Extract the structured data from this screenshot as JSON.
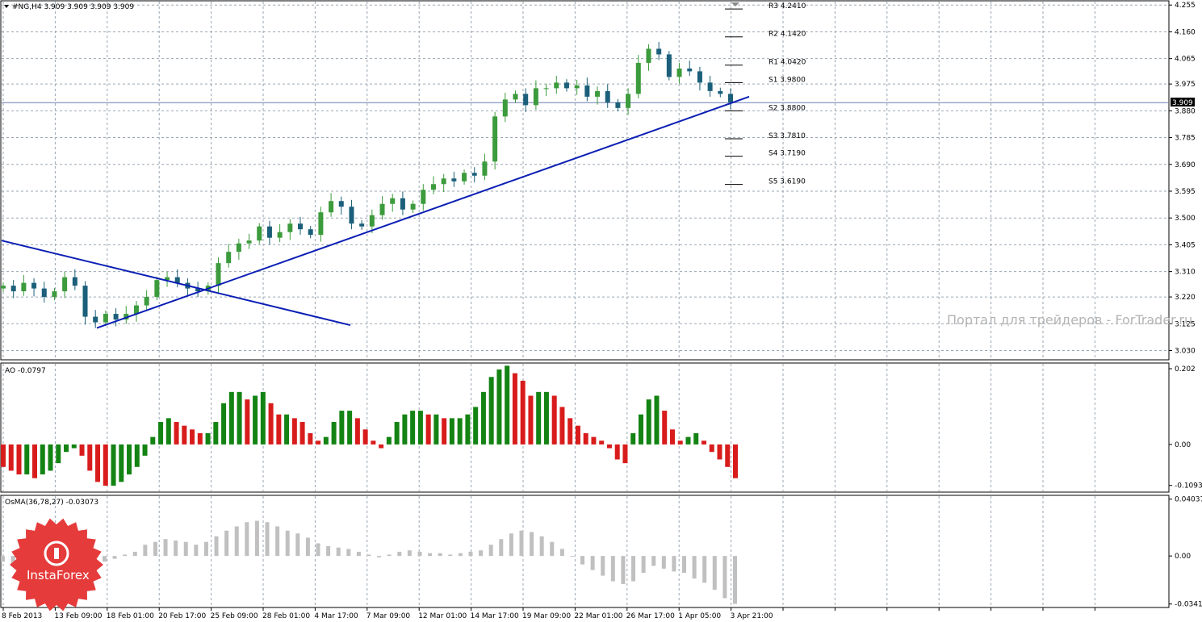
{
  "colors": {
    "background": "#ffffff",
    "grid": "#9aa6b2",
    "frame": "#000000",
    "bull_candle": "#3c9b3c",
    "bear_candle": "#1b5f7a",
    "trendline": "#0b1fb4",
    "ao_up": "#138313",
    "ao_down": "#d81c1c",
    "osma": "#c0c0c0",
    "watermark": "#b4b4b4",
    "logo_red": "#e53b3b"
  },
  "icons": {
    "title_marker": "down-triangle-icon",
    "logo": "instaforex-logo-icon"
  },
  "chart_data": [
    {
      "type": "candlestick",
      "title": "#NG,H4  3.909 3.909 3.909 3.909",
      "ylim": [
        3.0,
        4.27
      ],
      "y_ticks": [
        "4.255",
        "4.160",
        "4.065",
        "3.975",
        "3.880",
        "3.785",
        "3.690",
        "3.595",
        "3.500",
        "3.405",
        "3.310",
        "3.220",
        "3.125",
        "3.030"
      ],
      "current_price": "3.909",
      "x_ticks": [
        "8 Feb 2013",
        "13 Feb 09:00",
        "18 Feb 01:00",
        "20 Feb 17:00",
        "25 Feb 09:00",
        "28 Feb 01:00",
        "4 Mar 17:00",
        "7 Mar 09:00",
        "12 Mar 01:00",
        "14 Mar 17:00",
        "19 Mar 09:00",
        "22 Mar 01:00",
        "26 Mar 17:00",
        "1 Apr 05:00",
        "3 Apr 21:00"
      ],
      "closes_approx": [
        3.26,
        3.24,
        3.27,
        3.25,
        3.22,
        3.24,
        3.29,
        3.26,
        3.15,
        3.13,
        3.16,
        3.14,
        3.16,
        3.19,
        3.22,
        3.28,
        3.29,
        3.27,
        3.25,
        3.24,
        3.26,
        3.34,
        3.38,
        3.41,
        3.42,
        3.47,
        3.43,
        3.45,
        3.48,
        3.46,
        3.44,
        3.52,
        3.56,
        3.54,
        3.48,
        3.47,
        3.51,
        3.55,
        3.57,
        3.53,
        3.55,
        3.6,
        3.62,
        3.64,
        3.63,
        3.66,
        3.65,
        3.7,
        3.86,
        3.92,
        3.94,
        3.9,
        3.96,
        3.96,
        3.98,
        3.96,
        3.97,
        3.93,
        3.95,
        3.91,
        3.89,
        3.94,
        4.05,
        4.1,
        4.08,
        4.0,
        4.03,
        4.02,
        3.98,
        3.95,
        3.94,
        3.91
      ],
      "pivot_levels": [
        {
          "label": "R3",
          "value": "4.2410"
        },
        {
          "label": "R2",
          "value": "4.1420"
        },
        {
          "label": "R1",
          "value": "4.0420"
        },
        {
          "label": "S1",
          "value": "3.9800"
        },
        {
          "label": "S2",
          "value": "3.8800"
        },
        {
          "label": "S3",
          "value": "3.7810"
        },
        {
          "label": "S4",
          "value": "3.7190"
        },
        {
          "label": "S5",
          "value": "3.6190"
        }
      ],
      "trendlines": [
        {
          "name": "rising support",
          "start": [
            "15 Feb",
            3.11
          ],
          "end": [
            "4 Apr",
            3.93
          ]
        },
        {
          "name": "falling resistance",
          "start": [
            "8 Feb",
            3.42
          ],
          "end": [
            "6 Mar",
            3.12
          ]
        }
      ]
    },
    {
      "type": "bar",
      "title": "AO -0.0797",
      "ylim": [
        -0.125,
        0.215
      ],
      "y_ticks": [
        "0.202",
        "0.00",
        "-0.1093"
      ],
      "values": [
        -0.06,
        -0.07,
        -0.08,
        -0.08,
        -0.09,
        -0.08,
        -0.07,
        -0.05,
        -0.02,
        -0.01,
        -0.03,
        -0.07,
        -0.1,
        -0.11,
        -0.11,
        -0.1,
        -0.08,
        -0.06,
        -0.03,
        0.02,
        0.06,
        0.07,
        0.06,
        0.05,
        0.04,
        0.03,
        0.03,
        0.06,
        0.11,
        0.14,
        0.14,
        0.12,
        0.13,
        0.14,
        0.11,
        0.08,
        0.08,
        0.07,
        0.06,
        0.03,
        0.01,
        0.02,
        0.06,
        0.09,
        0.09,
        0.07,
        0.04,
        0.01,
        -0.01,
        0.02,
        0.06,
        0.08,
        0.09,
        0.09,
        0.08,
        0.08,
        0.07,
        0.07,
        0.07,
        0.08,
        0.1,
        0.14,
        0.18,
        0.2,
        0.21,
        0.19,
        0.17,
        0.13,
        0.14,
        0.14,
        0.13,
        0.1,
        0.07,
        0.05,
        0.03,
        0.02,
        0.01,
        -0.01,
        -0.04,
        -0.05,
        0.03,
        0.08,
        0.12,
        0.13,
        0.09,
        0.04,
        0.01,
        0.02,
        0.03,
        0.01,
        -0.02,
        -0.04,
        -0.06,
        -0.09
      ]
    },
    {
      "type": "bar",
      "title": "OsMA(36,78,27) -0.03073",
      "ylim": [
        -0.036,
        0.0425
      ],
      "y_ticks": [
        "0.04037",
        "0.00",
        "-0.03412"
      ],
      "values": [
        -0.004,
        -0.007,
        -0.01,
        -0.011,
        -0.012,
        -0.011,
        -0.01,
        -0.009,
        -0.008,
        -0.006,
        -0.004,
        -0.002,
        0.001,
        0.003,
        0.008,
        0.01,
        0.012,
        0.011,
        0.01,
        0.008,
        0.01,
        0.014,
        0.018,
        0.021,
        0.024,
        0.025,
        0.024,
        0.021,
        0.018,
        0.016,
        0.013,
        0.009,
        0.007,
        0.006,
        0.005,
        0.003,
        0.001,
        -0.001,
        0.001,
        0.003,
        0.004,
        0.003,
        0.002,
        0.002,
        0.001,
        0.002,
        0.003,
        0.004,
        0.008,
        0.012,
        0.016,
        0.018,
        0.017,
        0.014,
        0.01,
        0.005,
        0.0,
        -0.006,
        -0.01,
        -0.014,
        -0.018,
        -0.02,
        -0.018,
        -0.012,
        -0.007,
        -0.009,
        -0.011,
        -0.012,
        -0.016,
        -0.019,
        -0.024,
        -0.03,
        -0.034
      ]
    }
  ],
  "watermark_text": "Портал для трейдеров - ForTrader.ru",
  "logo_text": "InstaForex"
}
